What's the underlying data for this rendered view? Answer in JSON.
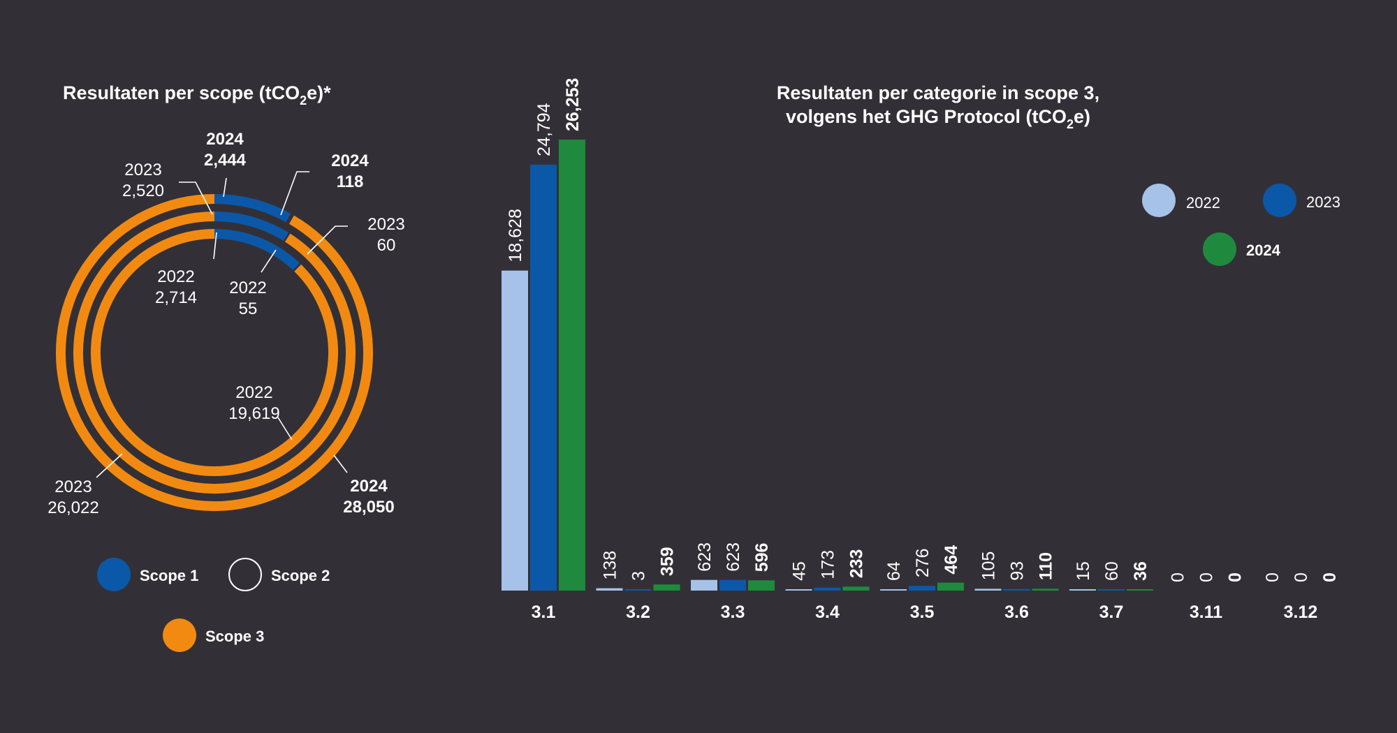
{
  "chart_data": [
    {
      "type": "donut",
      "title_main": "Resultaten per scope (tCO",
      "title_sub": "2",
      "title_end": "e)*",
      "legend": [
        "Scope 1",
        "Scope 2",
        "Scope 3"
      ],
      "colors": {
        "Scope 1": "#0b58a8",
        "Scope 2": "#323036",
        "Scope 3": "#f28a12"
      },
      "rings": [
        {
          "year": "2024",
          "ring": "outer",
          "scope1": 2444,
          "scope2": 118,
          "scope3": 28050
        },
        {
          "year": "2023",
          "ring": "middle",
          "scope1": 2520,
          "scope2": 60,
          "scope3": 26022
        },
        {
          "year": "2022",
          "ring": "inner",
          "scope1": 2714,
          "scope2": 55,
          "scope3": 19619
        }
      ],
      "annotations": {
        "s1_2024_year": "2024",
        "s1_2024_val": "2,444",
        "s2_2024_year": "2024",
        "s2_2024_val": "118",
        "s1_2023_year": "2023",
        "s1_2023_val": "2,520",
        "s2_2023_year": "2023",
        "s2_2023_val": "60",
        "s1_2022_year": "2022",
        "s1_2022_val": "2,714",
        "s2_2022_year": "2022",
        "s2_2022_val": "55",
        "s3_2022_year": "2022",
        "s3_2022_val": "19,619",
        "s3_2023_year": "2023",
        "s3_2023_val": "26,022",
        "s3_2024_year": "2024",
        "s3_2024_val": "28,050"
      }
    },
    {
      "type": "bar",
      "title_line1": "Resultaten per categorie in scope 3,",
      "title_line2_main": "volgens het GHG Protocol (tCO",
      "title_line2_sub": "2",
      "title_line2_end": "e)",
      "categories": [
        "3.1",
        "3.2",
        "3.3",
        "3.4",
        "3.5",
        "3.6",
        "3.7",
        "3.11",
        "3.12"
      ],
      "series": [
        {
          "name": "2022",
          "color": "#a6c2e8",
          "values": [
            18628,
            138,
            623,
            45,
            64,
            105,
            15,
            0,
            0
          ],
          "labels": [
            "18,628",
            "138",
            "623",
            "45",
            "64",
            "105",
            "15",
            "0",
            "0"
          ]
        },
        {
          "name": "2023",
          "color": "#0b58a8",
          "values": [
            24794,
            3,
            623,
            173,
            276,
            93,
            60,
            0,
            0
          ],
          "labels": [
            "24,794",
            "3",
            "623",
            "173",
            "276",
            "93",
            "60",
            "0",
            "0"
          ]
        },
        {
          "name": "2024",
          "color": "#1f8a3e",
          "values": [
            26253,
            359,
            596,
            233,
            464,
            110,
            36,
            0,
            0
          ],
          "labels": [
            "26,253",
            "359",
            "596",
            "233",
            "464",
            "110",
            "36",
            "0",
            "0"
          ]
        }
      ],
      "ylim": [
        0,
        26253
      ]
    }
  ]
}
